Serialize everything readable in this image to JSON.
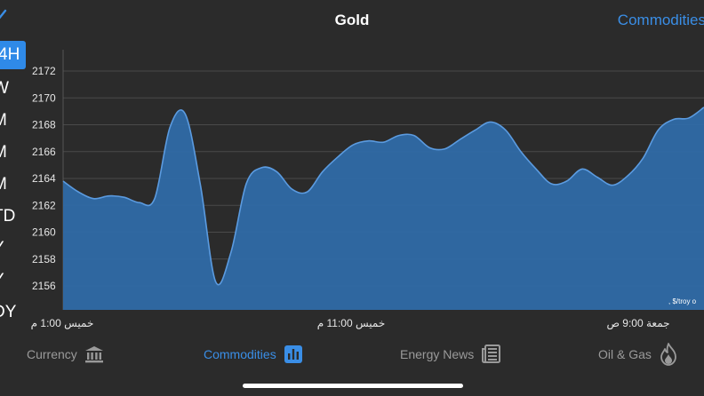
{
  "header": {
    "title": "Gold",
    "nav_right": "Commodities"
  },
  "ranges": [
    "4H",
    "W",
    "M",
    "M",
    "M",
    "TD",
    "Y",
    "Y",
    "DY"
  ],
  "active_range_index": 0,
  "chart_data": {
    "type": "area",
    "title": "",
    "xlabel": "",
    "ylabel": "",
    "ylim": [
      2154,
      2173
    ],
    "yticks": [
      2156,
      2158,
      2160,
      2162,
      2164,
      2166,
      2168,
      2170,
      2172
    ],
    "xtick_labels": [
      "خميس 1:00 م",
      "خميس 11:00 م",
      "جمعة 9:00 ص"
    ],
    "unit_label": ", $/troy o",
    "grid": true,
    "series": [
      {
        "color": "#2f6aa6",
        "values": [
          2163.8,
          2163.0,
          2162.5,
          2162.7,
          2162.6,
          2162.2,
          2162.5,
          2167.8,
          2168.8,
          2163.5,
          2156.3,
          2158.5,
          2163.6,
          2164.8,
          2164.5,
          2163.2,
          2163.0,
          2164.5,
          2165.6,
          2166.5,
          2166.8,
          2166.7,
          2167.2,
          2167.2,
          2166.3,
          2166.2,
          2166.9,
          2167.6,
          2168.2,
          2167.6,
          2166.0,
          2164.7,
          2163.6,
          2163.8,
          2164.7,
          2164.1,
          2163.5,
          2164.2,
          2165.5,
          2167.6,
          2168.4,
          2168.5,
          2169.3
        ]
      }
    ]
  },
  "tabs": [
    {
      "label": "Currency",
      "icon": "bank-icon",
      "active": false
    },
    {
      "label": "Commodities",
      "icon": "bar-chart-icon",
      "active": true
    },
    {
      "label": "Energy News",
      "icon": "newspaper-icon",
      "active": false
    },
    {
      "label": "Oil & Gas",
      "icon": "flame-icon",
      "active": false
    }
  ],
  "colors": {
    "background": "#2b2b2b",
    "accent": "#3a8ee6",
    "area_fill": "#2f6aa6",
    "area_line": "#5b9be0"
  }
}
